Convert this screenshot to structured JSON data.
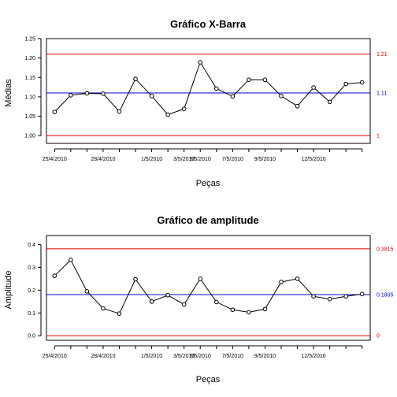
{
  "chart_data": [
    {
      "type": "line",
      "title": "Gráfico X-Barra",
      "xlabel": "Peças",
      "ylabel": "Médias",
      "ylim": [
        0.98,
        1.25
      ],
      "yticks": [
        "1.00",
        "1.05",
        "1.10",
        "1.15",
        "1.20",
        "1.25"
      ],
      "xlim": [
        0.5,
        20.5
      ],
      "xtick_labels": [
        {
          "x": 1,
          "label": "25/4/2010"
        },
        {
          "x": 4,
          "label": "28/4/2010"
        },
        {
          "x": 7,
          "label": "1/5/2010"
        },
        {
          "x": 9,
          "label": "3/5/2010"
        },
        {
          "x": 10,
          "label": "5/5/2010"
        },
        {
          "x": 12,
          "label": "7/5/2010"
        },
        {
          "x": 14,
          "label": "9/5/2010"
        },
        {
          "x": 17,
          "label": "12/5/2010"
        }
      ],
      "series": [
        {
          "x": [
            1,
            2,
            3,
            4,
            5,
            6,
            7,
            8,
            9,
            10,
            11,
            12,
            13,
            14,
            15,
            16,
            17,
            18,
            19,
            20
          ],
          "values": [
            1.061,
            1.104,
            1.109,
            1.108,
            1.062,
            1.146,
            1.102,
            1.054,
            1.069,
            1.189,
            1.121,
            1.101,
            1.144,
            1.144,
            1.102,
            1.076,
            1.124,
            1.087,
            1.133,
            1.137
          ]
        }
      ],
      "reference_lines": [
        {
          "value": 1.21,
          "label": "1.21",
          "color": "#dd0000"
        },
        {
          "value": 1.11,
          "label": "1.11",
          "color": "#0000cc"
        },
        {
          "value": 1.0,
          "label": "1",
          "color": "#dd0000"
        }
      ]
    },
    {
      "type": "line",
      "title": "Gráfico de amplitude",
      "xlabel": "Peças",
      "ylabel": "Amplitude",
      "ylim": [
        -0.02,
        0.44
      ],
      "yticks": [
        "0.0",
        "0.1",
        "0.2",
        "0.3",
        "0.4"
      ],
      "xlim": [
        0.5,
        20.5
      ],
      "xtick_labels": [
        {
          "x": 1,
          "label": "25/4/2010"
        },
        {
          "x": 4,
          "label": "28/4/2010"
        },
        {
          "x": 7,
          "label": "1/5/2010"
        },
        {
          "x": 9,
          "label": "3/5/2010"
        },
        {
          "x": 10,
          "label": "5/5/2010"
        },
        {
          "x": 12,
          "label": "7/5/2010"
        },
        {
          "x": 14,
          "label": "9/5/2010"
        },
        {
          "x": 17,
          "label": "12/5/2010"
        }
      ],
      "series": [
        {
          "x": [
            1,
            2,
            3,
            4,
            5,
            6,
            7,
            8,
            9,
            10,
            11,
            12,
            13,
            14,
            15,
            16,
            17,
            18,
            19,
            20
          ],
          "values": [
            0.263,
            0.333,
            0.195,
            0.12,
            0.097,
            0.248,
            0.15,
            0.178,
            0.137,
            0.25,
            0.148,
            0.114,
            0.103,
            0.117,
            0.236,
            0.25,
            0.173,
            0.161,
            0.173,
            0.183
          ]
        }
      ],
      "reference_lines": [
        {
          "value": 0.3815,
          "label": "0.3815",
          "color": "#dd0000"
        },
        {
          "value": 0.1805,
          "label": "0.1805",
          "color": "#0000cc"
        },
        {
          "value": 0.0,
          "label": "0",
          "color": "#dd0000"
        }
      ]
    }
  ]
}
